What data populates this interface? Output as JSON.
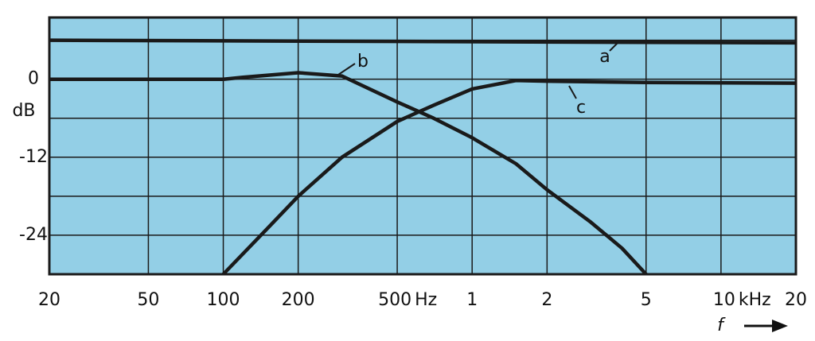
{
  "chart_data": {
    "type": "line",
    "xscale": "log",
    "y_axis_label": "dB",
    "x_axis_label": "f",
    "x_units": [
      "Hz",
      "kHz"
    ],
    "xlim": [
      20,
      20000
    ],
    "ylim": [
      -30,
      9.5
    ],
    "xticks": [
      20,
      50,
      100,
      200,
      500,
      {
        "value": 1000,
        "label": "1"
      },
      {
        "value": 2000,
        "label": "2"
      },
      {
        "value": 5000,
        "label": "5"
      },
      {
        "value": 10000,
        "label": "10"
      },
      {
        "value": 20000,
        "label": "20"
      }
    ],
    "yticks": [
      0,
      -12,
      -24
    ],
    "minor_yticks": [
      -18,
      -6,
      6
    ],
    "grid": true,
    "background": "#93cfe6",
    "series": [
      {
        "name": "a",
        "color": "#1a1a1a",
        "x": [
          20,
          20000
        ],
        "values": [
          6,
          5.6
        ]
      },
      {
        "name": "b",
        "color": "#1a1a1a",
        "x": [
          20,
          100,
          120,
          200,
          300,
          500,
          700,
          1000,
          1500,
          2000,
          3000,
          4000,
          5000
        ],
        "values": [
          0,
          0,
          0.3,
          1,
          0.5,
          -3.5,
          -6,
          -9,
          -13,
          -17,
          -22,
          -26,
          -30
        ]
      },
      {
        "name": "c",
        "color": "#1a1a1a",
        "x": [
          100,
          150,
          200,
          300,
          500,
          700,
          1000,
          1500,
          2000,
          5000,
          20000
        ],
        "values": [
          -30,
          -23,
          -18,
          -12,
          -6.5,
          -4,
          -1.5,
          -0.2,
          -0.3,
          -0.5,
          -0.6
        ]
      }
    ]
  }
}
